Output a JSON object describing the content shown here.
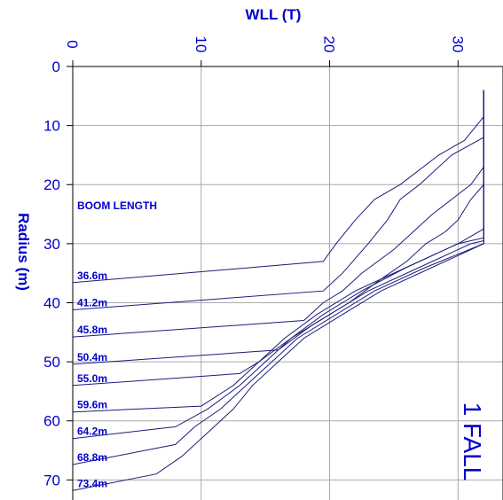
{
  "chart_data": {
    "type": "line",
    "xlabel": "WLL (T)",
    "ylabel": "Radius (m)",
    "xlim": [
      0,
      33.5
    ],
    "ylim": [
      0,
      74
    ],
    "x_ticks": [
      0,
      10,
      20,
      30
    ],
    "y_ticks": [
      0,
      10,
      20,
      30,
      40,
      50,
      60,
      70
    ],
    "x_axis_position": "top",
    "y_axis_inverted": true,
    "grid": true,
    "legend_title": "BOOM  LENGTH",
    "annotation": "1 FALL",
    "series": [
      {
        "name": "36.6m",
        "radius": [
          4,
          8.5,
          12.5,
          15,
          20,
          22.5,
          26,
          30,
          33,
          36.6
        ],
        "wll": [
          32,
          32,
          30.5,
          28.5,
          25.5,
          23.5,
          22,
          20.5,
          19.5,
          0
        ]
      },
      {
        "name": "41.2m",
        "radius": [
          4,
          12,
          15,
          20,
          22.5,
          26,
          30,
          35,
          38,
          41.2
        ],
        "wll": [
          32,
          32,
          29.5,
          27,
          25.5,
          24.5,
          23,
          21,
          19.5,
          0
        ]
      },
      {
        "name": "45.8m",
        "radius": [
          4,
          17,
          20,
          22.5,
          25,
          28,
          31,
          35,
          38,
          40,
          43,
          45.8
        ],
        "wll": [
          32,
          32,
          31,
          29.5,
          28,
          26.5,
          25,
          22.5,
          21,
          19.5,
          18,
          0
        ]
      },
      {
        "name": "50.4m",
        "radius": [
          4,
          20,
          22.5,
          26,
          28,
          30,
          33,
          36,
          40,
          44,
          48,
          50.4
        ],
        "wll": [
          32,
          32,
          31,
          30,
          29,
          27.5,
          26,
          24,
          21.5,
          18.5,
          16,
          0
        ]
      },
      {
        "name": "55.0m",
        "radius": [
          4,
          27.5,
          30,
          34,
          38,
          42,
          46,
          50,
          52,
          54
        ],
        "wll": [
          32,
          32,
          30,
          26,
          22,
          19,
          16.5,
          14.5,
          13,
          0
        ]
      },
      {
        "name": "59.6m",
        "radius": [
          4,
          29,
          30,
          34,
          38,
          42,
          46,
          50,
          54,
          57.5,
          58.5
        ],
        "wll": [
          32,
          32,
          30,
          26,
          22.5,
          19.5,
          17,
          14.5,
          12.5,
          10,
          0
        ]
      },
      {
        "name": "64.2m",
        "radius": [
          4,
          29.5,
          30,
          34,
          38,
          42,
          46,
          50,
          54,
          58,
          61,
          63
        ],
        "wll": [
          32,
          32,
          31,
          27,
          23,
          20,
          17,
          15,
          13,
          10.5,
          8,
          0
        ]
      },
      {
        "name": "68.8m",
        "radius": [
          4,
          30,
          34,
          38,
          42,
          46,
          50,
          54,
          58,
          61,
          64,
          67.4
        ],
        "wll": [
          32,
          32,
          27.5,
          23.5,
          20.5,
          17.5,
          15.5,
          13.5,
          11.5,
          9.5,
          8,
          0
        ]
      },
      {
        "name": "73.4m",
        "radius": [
          4,
          30,
          34,
          38,
          42,
          46,
          50,
          54,
          58,
          62,
          66,
          69,
          71.8
        ],
        "wll": [
          32,
          32,
          28,
          24,
          21,
          18,
          16,
          14,
          12.5,
          10.5,
          8.5,
          6.5,
          0
        ]
      }
    ]
  }
}
